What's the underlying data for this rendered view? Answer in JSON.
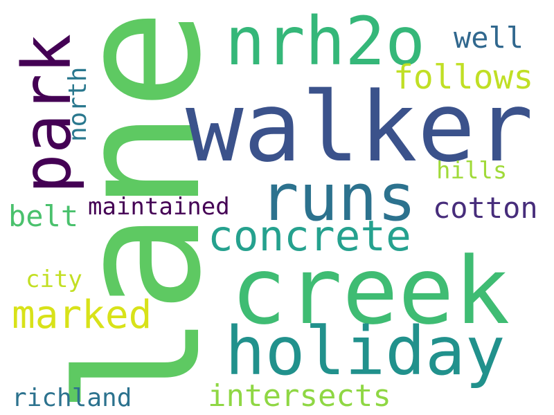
{
  "words": [
    {
      "text": "lane",
      "color": "#5ec962"
    },
    {
      "text": "walker",
      "color": "#3b528b"
    },
    {
      "text": "creek",
      "color": "#3fbc73"
    },
    {
      "text": "nrh2o",
      "color": "#35b779"
    },
    {
      "text": "holiday",
      "color": "#21918c"
    },
    {
      "text": "runs",
      "color": "#2c728e"
    },
    {
      "text": "park",
      "color": "#440154"
    },
    {
      "text": "concrete",
      "color": "#25a18e"
    },
    {
      "text": "marked",
      "color": "#d8e219"
    },
    {
      "text": "follows",
      "color": "#c0df25"
    },
    {
      "text": "well",
      "color": "#31688e"
    },
    {
      "text": "cotton",
      "color": "#472d7b"
    },
    {
      "text": "maintained",
      "color": "#440154"
    },
    {
      "text": "belt",
      "color": "#4ac16d"
    },
    {
      "text": "north",
      "color": "#2a788e"
    },
    {
      "text": "hills",
      "color": "#a0da39"
    },
    {
      "text": "city",
      "color": "#c2df23"
    },
    {
      "text": "richland",
      "color": "#2c728e"
    },
    {
      "text": "intersects",
      "color": "#8fd744"
    }
  ]
}
